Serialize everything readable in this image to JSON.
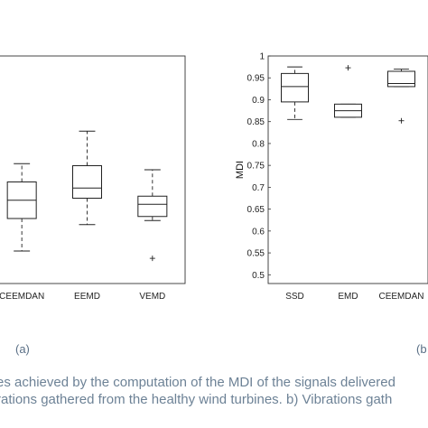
{
  "chart_data": [
    {
      "type": "box",
      "title": "",
      "xlabel": "",
      "ylabel": "",
      "categories": [
        "CEEMDAN",
        "EEMD",
        "VEMD"
      ],
      "ylim": [
        0.44,
        1.0
      ],
      "boxes": [
        {
          "category": "CEEMDAN",
          "whisker_low": 0.52,
          "q1": 0.6,
          "median": 0.645,
          "q3": 0.69,
          "whisker_high": 0.735,
          "outliers": []
        },
        {
          "category": "EEMD",
          "whisker_low": 0.585,
          "q1": 0.65,
          "median": 0.675,
          "q3": 0.73,
          "whisker_high": 0.815,
          "outliers": []
        },
        {
          "category": "VEMD",
          "whisker_low": 0.595,
          "q1": 0.605,
          "median": 0.635,
          "q3": 0.655,
          "whisker_high": 0.72,
          "outliers": [
            0.502
          ]
        }
      ],
      "panel_label": "(a)"
    },
    {
      "type": "box",
      "title": "",
      "xlabel": "",
      "ylabel": "MDI",
      "categories": [
        "SSD",
        "EMD",
        "CEEMDAN"
      ],
      "yticks": [
        "0.5",
        "0.55",
        "0.6",
        "0.65",
        "0.7",
        "0.75",
        "0.8",
        "0.85",
        "0.9",
        "0.95",
        "1"
      ],
      "ylim": [
        0.48,
        1.0
      ],
      "boxes": [
        {
          "category": "SSD",
          "whisker_low": 0.855,
          "q1": 0.895,
          "median": 0.93,
          "q3": 0.96,
          "whisker_high": 0.975,
          "outliers": []
        },
        {
          "category": "EMD",
          "whisker_low": 0.86,
          "q1": 0.86,
          "median": 0.875,
          "q3": 0.89,
          "whisker_high": 0.89,
          "outliers": [
            0.973
          ]
        },
        {
          "category": "CEEMDAN",
          "whisker_low": 0.93,
          "q1": 0.93,
          "median": 0.937,
          "q3": 0.965,
          "whisker_high": 0.97,
          "outliers": [
            0.852
          ]
        }
      ],
      "panel_label": "(b"
    }
  ],
  "caption": {
    "line1": "es achieved by the computation of the MDI of the signals delivered",
    "line2": "rations gathered from the healthy wind turbines. b) Vibrations gath"
  }
}
